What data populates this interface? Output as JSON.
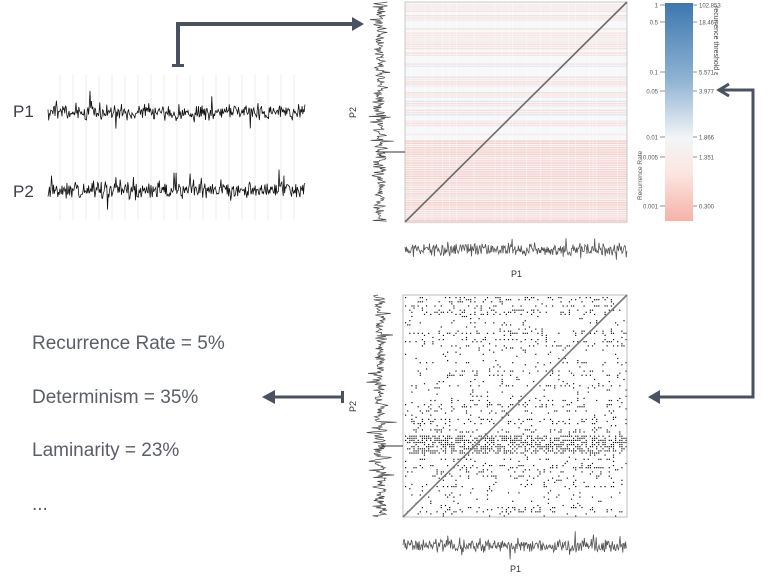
{
  "signals": {
    "p1_label": "P1",
    "p2_label": "P2"
  },
  "top_plot": {
    "y_axis_label": "P2",
    "x_axis_label": "P1"
  },
  "bottom_plot": {
    "y_axis_label": "P2",
    "x_axis_label": "P1"
  },
  "colorbar": {
    "left_title": "Recurrence Rate",
    "right_title": "recurrence threshold ε",
    "left_ticks": [
      "1",
      "0.5",
      "0.1",
      "0.05",
      "0.01",
      "0.005",
      "0.001"
    ],
    "right_ticks": [
      "102.853",
      "18.467",
      "5.571",
      "3.977",
      "1.866",
      "1.351",
      "0.300"
    ],
    "color_top": "#3d78b0",
    "color_mid": "#f4f6f8",
    "color_bottom": "#f6b7ad"
  },
  "metrics": {
    "recurrence_rate": "Recurrence Rate = 5%",
    "determinism": "Determinism = 35%",
    "laminarity": "Laminarity = 23%",
    "ellipsis": "..."
  },
  "colors": {
    "arrow": "#4a5160",
    "signal": "#111111",
    "diagonal": "#6b6b6b"
  }
}
